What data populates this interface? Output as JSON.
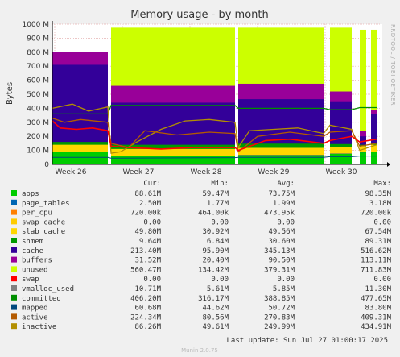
{
  "chart_data": {
    "type": "area",
    "title": "Memory usage - by month",
    "ylabel": "Bytes",
    "watermark": "RRDTOOL / TOBI OETIKER",
    "ylim": [
      0,
      1000000000
    ],
    "yticks": [
      "0",
      "100 M",
      "200 M",
      "300 M",
      "400 M",
      "500 M",
      "600 M",
      "700 M",
      "800 M",
      "900 M",
      "1000 M"
    ],
    "xticks": [
      "Week 26",
      "Week 27",
      "Week 28",
      "Week 29",
      "Week 30"
    ],
    "columns": [
      "Cur:",
      "Min:",
      "Avg:",
      "Max:"
    ],
    "series": [
      {
        "name": "apps",
        "color": "#00cc00",
        "cur": "88.61M",
        "min": "59.47M",
        "avg": "73.75M",
        "max": "98.35M"
      },
      {
        "name": "page_tables",
        "color": "#0066b3",
        "cur": "2.50M",
        "min": "1.77M",
        "avg": "1.99M",
        "max": "3.18M"
      },
      {
        "name": "per_cpu",
        "color": "#ff8000",
        "cur": "720.00k",
        "min": "464.00k",
        "avg": "473.95k",
        "max": "720.00k"
      },
      {
        "name": "swap_cache",
        "color": "#ffcc00",
        "cur": "0.00",
        "min": "0.00",
        "avg": "0.00",
        "max": "0.00"
      },
      {
        "name": "slab_cache",
        "color": "#ffd700",
        "cur": "49.80M",
        "min": "30.92M",
        "avg": "49.56M",
        "max": "67.54M"
      },
      {
        "name": "shmem",
        "color": "#009900",
        "cur": "9.64M",
        "min": "6.84M",
        "avg": "30.60M",
        "max": "89.31M"
      },
      {
        "name": "cache",
        "color": "#330099",
        "cur": "213.40M",
        "min": "95.90M",
        "avg": "345.13M",
        "max": "516.62M"
      },
      {
        "name": "buffers",
        "color": "#990099",
        "cur": "31.52M",
        "min": "20.40M",
        "avg": "90.50M",
        "max": "113.11M"
      },
      {
        "name": "unused",
        "color": "#ccff00",
        "cur": "560.47M",
        "min": "134.42M",
        "avg": "379.31M",
        "max": "711.83M"
      },
      {
        "name": "swap",
        "color": "#ff0000",
        "cur": "0.00",
        "min": "0.00",
        "avg": "0.00",
        "max": "0.00"
      },
      {
        "name": "vmalloc_used",
        "color": "#808080",
        "cur": "10.71M",
        "min": "5.61M",
        "avg": "5.85M",
        "max": "11.30M"
      },
      {
        "name": "committed",
        "color": "#008f00",
        "cur": "406.20M",
        "min": "316.17M",
        "avg": "388.85M",
        "max": "477.65M"
      },
      {
        "name": "mapped",
        "color": "#00487d",
        "cur": "60.68M",
        "min": "44.62M",
        "avg": "50.72M",
        "max": "83.80M"
      },
      {
        "name": "active",
        "color": "#b35a00",
        "cur": "224.34M",
        "min": "80.56M",
        "avg": "270.83M",
        "max": "409.31M"
      },
      {
        "name": "inactive",
        "color": "#b38f00",
        "cur": "86.26M",
        "min": "49.61M",
        "avg": "249.99M",
        "max": "434.91M"
      }
    ],
    "last_update": "Last update:  Sun Jul 27 01:00:17 2025",
    "footer": "Munin 2.0.75"
  }
}
